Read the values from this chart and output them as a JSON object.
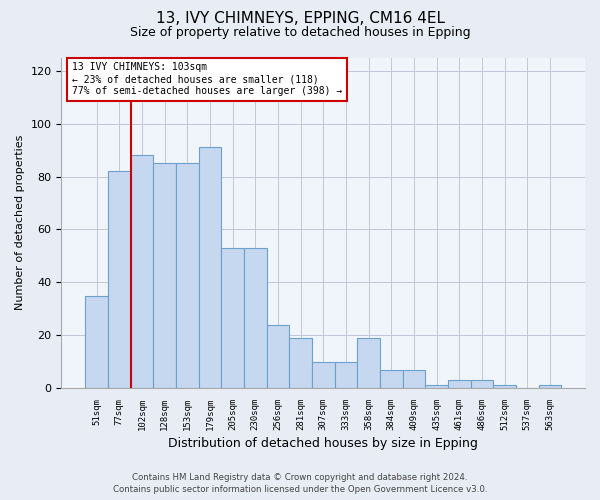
{
  "title_line1": "13, IVY CHIMNEYS, EPPING, CM16 4EL",
  "title_line2": "Size of property relative to detached houses in Epping",
  "xlabel": "Distribution of detached houses by size in Epping",
  "ylabel": "Number of detached properties",
  "categories": [
    "51sqm",
    "77sqm",
    "102sqm",
    "128sqm",
    "153sqm",
    "179sqm",
    "205sqm",
    "230sqm",
    "256sqm",
    "281sqm",
    "307sqm",
    "333sqm",
    "358sqm",
    "384sqm",
    "409sqm",
    "435sqm",
    "461sqm",
    "486sqm",
    "512sqm",
    "537sqm",
    "563sqm"
  ],
  "values": [
    35,
    82,
    88,
    85,
    85,
    91,
    53,
    53,
    24,
    19,
    10,
    10,
    19,
    7,
    7,
    1,
    3,
    3,
    1,
    0,
    1
  ],
  "bar_color": "#c5d8ef",
  "bar_edgecolor": "#6ca0cc",
  "bar_linewidth": 0.8,
  "vline_x": 1.5,
  "vline_color": "#cc0000",
  "ylim": [
    0,
    125
  ],
  "yticks": [
    0,
    20,
    40,
    60,
    80,
    100,
    120
  ],
  "annotation_line1": "13 IVY CHIMNEYS: 103sqm",
  "annotation_line2": "← 23% of detached houses are smaller (118)",
  "annotation_line3": "77% of semi-detached houses are larger (398) →",
  "annotation_box_color": "#ffffff",
  "annotation_box_edgecolor": "#cc0000",
  "footer_line1": "Contains HM Land Registry data © Crown copyright and database right 2024.",
  "footer_line2": "Contains public sector information licensed under the Open Government Licence v3.0.",
  "bg_color": "#e8edf5",
  "plot_bg_color": "#f0f5fb",
  "grid_color": "#c0c8d8"
}
